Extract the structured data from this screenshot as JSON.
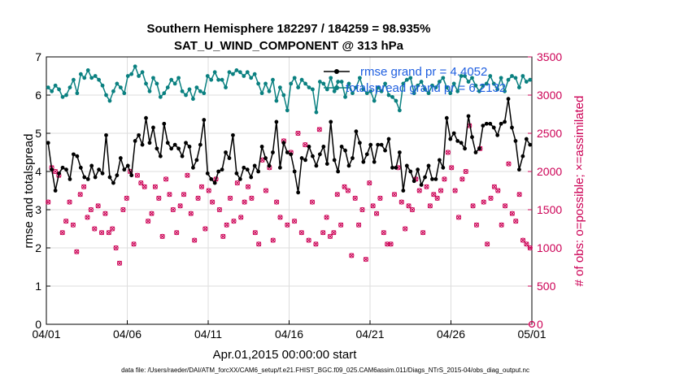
{
  "chart_data": {
    "type": "line",
    "title": "Southern Hemisphere 182297 / 184259 = 98.935%",
    "subtitle": "SAT_U_WIND_COMPONENT @ 313 hPa",
    "xlabel": "Apr.01,2015 00:00:00 start",
    "ylabel": "rmse and totalspread",
    "ylabel_right": "# of obs: o=possible; ×=assimilated",
    "x_ticks": [
      "04/01",
      "04/06",
      "04/11",
      "04/16",
      "04/21",
      "04/26",
      "05/01"
    ],
    "x_range_days": [
      0,
      30
    ],
    "ylim": [
      0,
      7
    ],
    "y_ticks": [
      0,
      1,
      2,
      3,
      4,
      5,
      6,
      7
    ],
    "ylim_right": [
      0,
      3500
    ],
    "y_ticks_right": [
      0,
      500,
      1000,
      1500,
      2000,
      2500,
      3000,
      3500
    ],
    "grid": true,
    "legend_placement": "top-right",
    "colors": {
      "rmse": "#000000",
      "spread": "#0a8080",
      "obs": "#cc0055",
      "legend_text": "#1f5fe0"
    },
    "series": [
      {
        "name": "rmse grand pr = 4.4052",
        "axis": "left",
        "values": [
          4.75,
          4.05,
          3.5,
          3.95,
          4.1,
          4.05,
          3.8,
          4.45,
          4.4,
          4.1,
          3.85,
          3.8,
          4.15,
          3.85,
          4.05,
          3.95,
          4.95,
          3.85,
          3.7,
          3.9,
          4.35,
          4.05,
          4.15,
          3.9,
          4.8,
          4.95,
          4.7,
          5.4,
          4.75,
          5.15,
          4.6,
          4.4,
          5.25,
          4.75,
          4.6,
          4.7,
          4.6,
          4.4,
          4.75,
          4.65,
          4.1,
          4.3,
          4.7,
          5.35,
          3.95,
          3.8,
          3.7,
          4.0,
          4.05,
          4.5,
          4.35,
          4.95,
          3.95,
          3.8,
          4.1,
          4.05,
          3.85,
          4.15,
          4.0,
          4.65,
          4.35,
          4.15,
          4.5,
          5.3,
          4.1,
          4.75,
          4.5,
          4.45,
          4.0,
          3.45,
          4.35,
          4.3,
          4.65,
          4.4,
          4.15,
          4.45,
          4.65,
          4.2,
          5.3,
          4.3,
          4.0,
          4.65,
          4.55,
          4.15,
          4.35,
          5.05,
          4.75,
          4.25,
          4.45,
          4.7,
          4.25,
          4.7,
          4.7,
          4.55,
          4.85,
          4.1,
          4.1,
          4.5,
          3.5,
          4.15,
          4.0,
          3.75,
          4.05,
          3.65,
          3.85,
          4.15,
          3.8,
          3.8,
          4.3,
          4.1,
          5.4,
          4.85,
          5.0,
          4.8,
          4.75,
          4.6,
          5.45,
          4.9,
          4.5,
          4.6,
          5.2,
          5.25,
          5.25,
          5.15,
          4.95,
          5.25,
          5.3,
          5.9,
          5.15,
          4.8,
          4.05,
          4.4,
          4.85,
          4.7
        ]
      },
      {
        "name": "totalspread grand pr = 6.2132",
        "axis": "left",
        "values": [
          6.2,
          6.1,
          6.25,
          6.15,
          5.95,
          6.0,
          6.2,
          6.4,
          6.05,
          6.55,
          6.45,
          6.65,
          6.45,
          6.5,
          6.4,
          6.25,
          6.0,
          5.85,
          6.1,
          6.3,
          6.2,
          6.05,
          6.5,
          6.55,
          6.75,
          6.5,
          6.6,
          6.3,
          6.1,
          6.45,
          6.3,
          5.95,
          6.05,
          6.2,
          6.4,
          6.3,
          6.45,
          6.1,
          6.0,
          6.15,
          5.9,
          6.2,
          6.1,
          6.05,
          6.5,
          6.4,
          6.6,
          6.4,
          6.4,
          6.2,
          6.6,
          6.55,
          6.65,
          6.6,
          6.5,
          6.6,
          6.45,
          6.55,
          6.3,
          6.05,
          6.3,
          6.1,
          6.4,
          5.85,
          6.2,
          6.0,
          5.6,
          6.3,
          6.45,
          6.2,
          6.4,
          6.3,
          6.2,
          6.15,
          5.55,
          6.35,
          6.3,
          6.15,
          6.45,
          6.1,
          6.35,
          6.35,
          5.95,
          6.3,
          6.05,
          6.2,
          6.45,
          6.15,
          6.05,
          6.1,
          5.85,
          6.2,
          6.1,
          6.3,
          6.0,
          5.95,
          5.85,
          5.6,
          6.3,
          6.4,
          6.45,
          6.05,
          6.25,
          6.35,
          6.15,
          6.05,
          6.25,
          6.2,
          6.35,
          6.45,
          6.2,
          6.05,
          6.3,
          6.1,
          6.5,
          6.5,
          6.35,
          6.45,
          6.25,
          6.1,
          6.25,
          6.3,
          6.5,
          6.3,
          6.15,
          6.45,
          6.1,
          6.4,
          6.5,
          6.45,
          6.2,
          6.5,
          6.35,
          6.4
        ]
      },
      {
        "name": "possible",
        "axis": "right",
        "marker": "o",
        "values": [
          1600,
          2050,
          2000,
          1950,
          1200,
          1350,
          1600,
          1300,
          950,
          1700,
          1800,
          1400,
          1500,
          1250,
          1550,
          1200,
          1450,
          1200,
          1250,
          1000,
          800,
          1500,
          1650,
          2000,
          1050,
          1950,
          1850,
          1800,
          1350,
          1450,
          1800,
          1650,
          1150,
          1900,
          1700,
          1500,
          1200,
          1550,
          1700,
          1950,
          1450,
          1100,
          1650,
          1800,
          1250,
          1750,
          1600,
          1900,
          1500,
          1150,
          1300,
          1650,
          1350,
          1850,
          1400,
          1600,
          1800,
          1650,
          1200,
          1050,
          2150,
          1750,
          2050,
          1100,
          1600,
          1400,
          2400,
          1300,
          2250,
          1350,
          2500,
          1200,
          2350,
          1100,
          1600,
          1050,
          2550,
          1200,
          1400,
          1150,
          1200,
          1700,
          1300,
          1800,
          1750,
          900,
          1650,
          1300,
          1500,
          850,
          1850,
          1550,
          1450,
          1650,
          1200,
          1050,
          1050,
          1700,
          2050,
          1600,
          1250,
          1550,
          1500,
          1900,
          1750,
          1200,
          1800,
          1550,
          1700,
          1650,
          1750,
          1900,
          2250,
          2050,
          1750,
          1400,
          1900,
          2000,
          2600,
          1550,
          1300,
          2300,
          1600,
          1050,
          1650,
          1800,
          1750,
          1300,
          1550,
          2100,
          1450,
          1350,
          1700,
          1100,
          1050,
          1000
        ]
      },
      {
        "name": "assimilated",
        "axis": "right",
        "marker": "x",
        "values": [
          1600,
          2050,
          2000,
          1950,
          1200,
          1350,
          1600,
          1300,
          950,
          1700,
          1800,
          1400,
          1500,
          1250,
          1550,
          1200,
          1450,
          1200,
          1250,
          1000,
          800,
          1500,
          1650,
          2000,
          1050,
          1950,
          1850,
          1800,
          1350,
          1450,
          1800,
          1650,
          1150,
          1900,
          1700,
          1500,
          1200,
          1550,
          1700,
          1950,
          1450,
          1100,
          1650,
          1800,
          1250,
          1750,
          1600,
          1900,
          1500,
          1150,
          1300,
          1650,
          1350,
          1850,
          1400,
          1600,
          1800,
          1650,
          1200,
          1050,
          2150,
          1750,
          2050,
          1100,
          1600,
          1400,
          2400,
          1300,
          2250,
          1350,
          2500,
          1200,
          2350,
          1100,
          1600,
          1050,
          2550,
          1200,
          1400,
          1150,
          1200,
          1700,
          1300,
          1800,
          1750,
          900,
          1650,
          1300,
          1500,
          850,
          1850,
          1550,
          1450,
          1650,
          1200,
          1050,
          1050,
          1700,
          2050,
          1600,
          1250,
          1550,
          1500,
          1900,
          1750,
          1200,
          1800,
          1550,
          1700,
          1650,
          1750,
          1900,
          2250,
          2050,
          1750,
          1400,
          1900,
          2000,
          2600,
          1550,
          1300,
          2300,
          1600,
          1050,
          1650,
          1800,
          1750,
          1300,
          1550,
          2100,
          1450,
          1350,
          1700,
          1100,
          1050,
          1000
        ]
      }
    ]
  },
  "footer": {
    "data_file": "data file: /Users/raeder/DAI/ATM_forcXX/CAM6_setup/f.e21.FHIST_BGC.f09_025.CAM6assim.011/Diags_NTrS_2015-04/obs_diag_output.nc"
  }
}
